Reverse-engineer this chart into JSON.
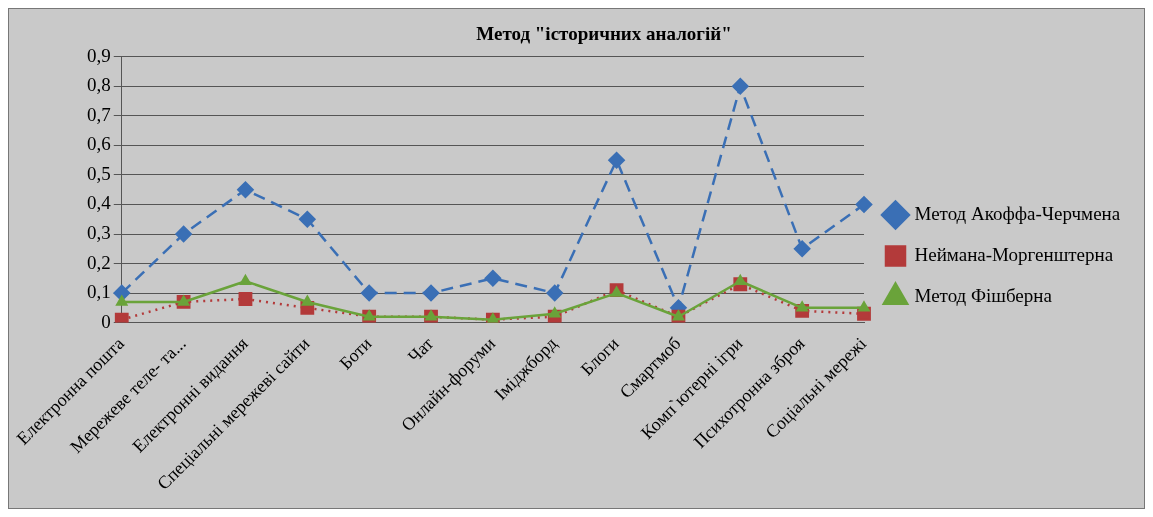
{
  "chart_data": {
    "type": "line",
    "title": "Метод \"історичних аналогій\"",
    "categories": [
      "Електронна пошта",
      "Мережеве теле- та...",
      "Електронні видання",
      "Спеціальні мережеві сайти",
      "Боти",
      "Чат",
      "Онлайн-форуми",
      "Іміджборд",
      "Блоги",
      "Смартмоб",
      "Комп`ютерні ігри",
      "Психотронна зброя",
      "Соціальні мережі"
    ],
    "series": [
      {
        "name": "Метод Акоффа-Черчмена",
        "color": "#3a6fb5",
        "marker": "diamond",
        "line_style": "dashed",
        "values": [
          0.1,
          0.3,
          0.45,
          0.35,
          0.1,
          0.1,
          0.15,
          0.1,
          0.55,
          0.05,
          0.8,
          0.25,
          0.4
        ]
      },
      {
        "name": "Неймана-Моргенштерна",
        "color": "#b33a3a",
        "marker": "square",
        "line_style": "dotted",
        "values": [
          0.01,
          0.07,
          0.08,
          0.05,
          0.02,
          0.02,
          0.01,
          0.02,
          0.11,
          0.02,
          0.13,
          0.04,
          0.03
        ]
      },
      {
        "name": "Метод Фішберна",
        "color": "#6aa33a",
        "marker": "triangle",
        "line_style": "solid",
        "values": [
          0.07,
          0.07,
          0.14,
          0.07,
          0.02,
          0.02,
          0.01,
          0.03,
          0.1,
          0.02,
          0.14,
          0.05,
          0.05
        ]
      }
    ],
    "ylim": [
      0,
      0.9
    ],
    "yticks": [
      0,
      {
        "value": 0.1,
        "label": "0,1"
      },
      {
        "value": 0.2,
        "label": "0,2"
      },
      {
        "value": 0.3,
        "label": "0,3"
      },
      {
        "value": 0.4,
        "label": "0,4"
      },
      {
        "value": 0.5,
        "label": "0,5"
      },
      {
        "value": 0.6,
        "label": "0,6"
      },
      {
        "value": 0.7,
        "label": "0,7"
      },
      {
        "value": 0.8,
        "label": "0,8"
      },
      {
        "value": 0.9,
        "label": "0,9"
      }
    ],
    "grid": "y",
    "legend": "right"
  }
}
